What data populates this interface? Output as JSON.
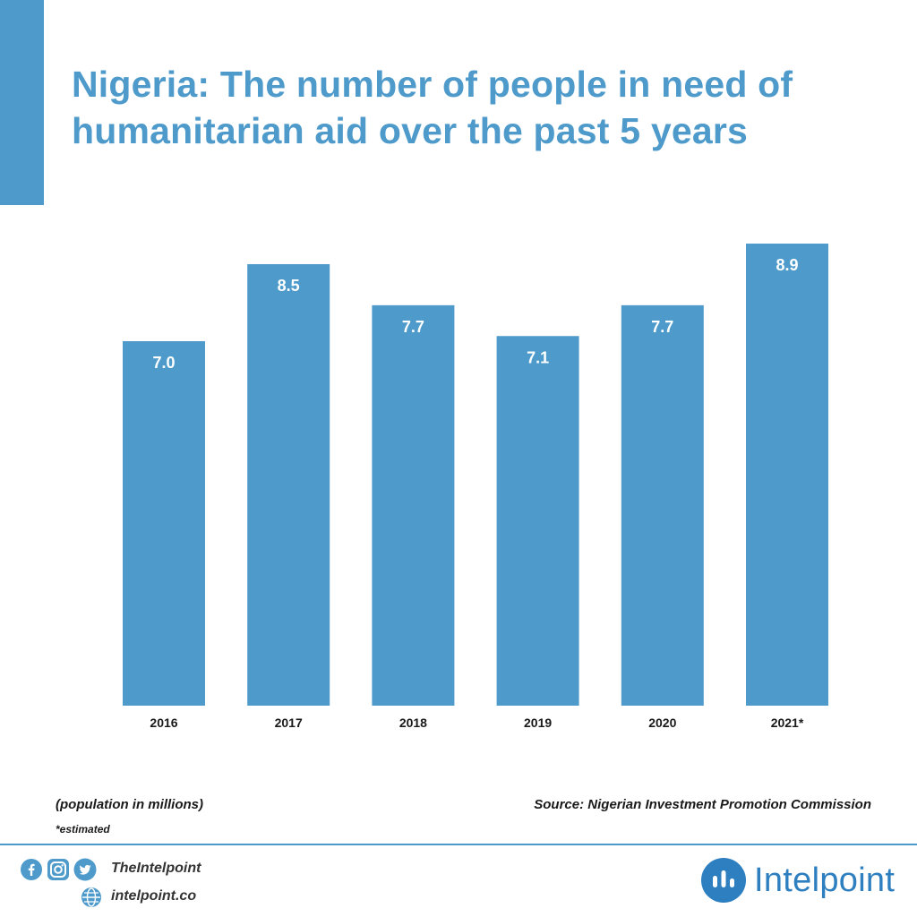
{
  "title": {
    "line1": "Nigeria: The number of people in need of",
    "line2": "humanitarian aid over the past 5 years"
  },
  "chart_data": {
    "type": "bar",
    "title": "Nigeria: The number of people in need of humanitarian aid over the past 5 years",
    "categories": [
      "2016",
      "2017",
      "2018",
      "2019",
      "2020",
      "2021*"
    ],
    "values": [
      7.0,
      8.5,
      7.7,
      7.1,
      7.7,
      8.9
    ],
    "data_labels": [
      "7.0",
      "8.5",
      "7.7",
      "7.1",
      "7.7",
      "8.9"
    ],
    "xlabel": "",
    "ylabel": "",
    "grid": false,
    "y_axis_visible": false
  },
  "notes": {
    "units": "(population in millions)",
    "estimated": "*estimated",
    "source": "Source: Nigerian Investment Promotion Commission"
  },
  "footer": {
    "handle": "TheIntelpoint",
    "website": "intelpoint.co",
    "brand": "Intelpoint",
    "icons": [
      "facebook-icon",
      "instagram-icon",
      "twitter-icon",
      "globe-icon"
    ]
  },
  "colors": {
    "bar": "#4d9acb",
    "accent": "#4d9acb",
    "brand": "#2e7fc0",
    "data_label": "#ffffff",
    "tick_label": "#1a1a1a"
  }
}
